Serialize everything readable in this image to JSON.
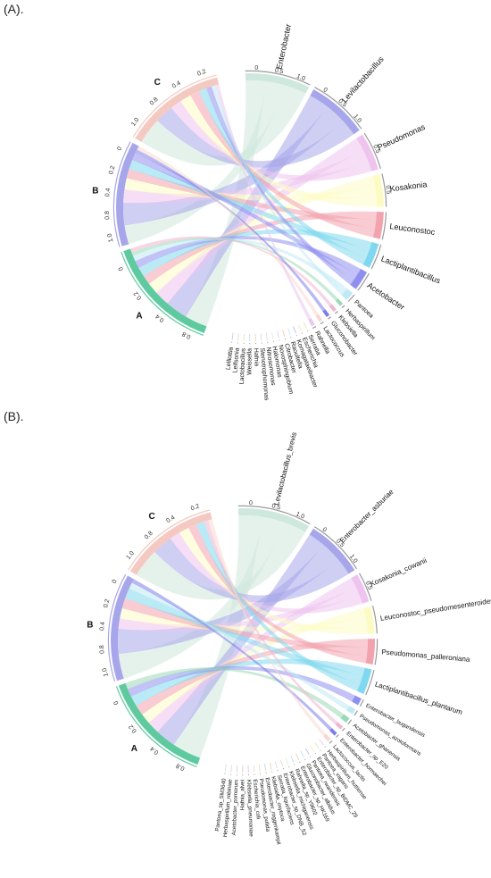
{
  "panels": [
    {
      "label": "(A).",
      "groups": [
        {
          "name": "A",
          "color": "#5fcaa0",
          "ticks": [
            "0.8",
            "0.4",
            "0.2",
            "0"
          ]
        },
        {
          "name": "B",
          "color": "#a8a6ea",
          "ticks": [
            "1.0",
            "0.8",
            "0.4",
            "0.2",
            "0"
          ]
        },
        {
          "name": "C",
          "color": "#f4c9c2",
          "ticks": [
            "1.0",
            "0.8",
            "0.4",
            "0.2"
          ]
        }
      ],
      "taxa": [
        {
          "name": "Enterobacter",
          "color": "#cfe8dd",
          "ticks": [
            "0",
            "0.5",
            "1.0"
          ]
        },
        {
          "name": "Levilactobacillus",
          "color": "#a8a6ea",
          "ticks": [
            "0",
            "0.5",
            "1.0"
          ]
        },
        {
          "name": "Pseudomonas",
          "color": "#eec4ee",
          "ticks": [
            "0.5"
          ]
        },
        {
          "name": "Kosakonia",
          "color": "#fdfbc4",
          "ticks": [
            "0.5"
          ]
        },
        {
          "name": "Leuconostoc",
          "color": "#f3a3ad",
          "ticks": []
        },
        {
          "name": "Lactiplantibacillus",
          "color": "#7fd8ef",
          "ticks": []
        },
        {
          "name": "Acetobacter",
          "color": "#8f8ff0",
          "ticks": []
        },
        {
          "name": "Pantoea",
          "color": "#bfe9f4",
          "ticks": []
        },
        {
          "name": "Herbaspirillum",
          "color": "#9ad9b7",
          "ticks": []
        },
        {
          "name": "Klebsiella",
          "color": "#f0b6cf",
          "ticks": []
        },
        {
          "name": "Gluconobacter",
          "color": "#7d7dea",
          "ticks": []
        },
        {
          "name": "Lactococcus",
          "color": "#f7d8d0",
          "ticks": []
        },
        {
          "name": "Rahnella",
          "color": "#e7c8ef",
          "ticks": []
        },
        {
          "name": "Serratia",
          "color": "#d4e8b8",
          "ticks": []
        },
        {
          "name": "Escherichia",
          "color": "#f9e4b8",
          "ticks": []
        },
        {
          "name": "Komagataeibacter",
          "color": "#c1b3ee",
          "ticks": []
        },
        {
          "name": "Raoultella",
          "color": "#bfe3e8",
          "ticks": []
        },
        {
          "name": "Citrobacter",
          "color": "#f2c2a6",
          "ticks": []
        },
        {
          "name": "Novosphingobium",
          "color": "#cfd4f4",
          "ticks": []
        },
        {
          "name": "Halomonas",
          "color": "#d8efc9",
          "ticks": []
        },
        {
          "name": "Nitrosomonas",
          "color": "#f1d0e6",
          "ticks": []
        },
        {
          "name": "Stenotrophomonas",
          "color": "#d6d6d6",
          "ticks": []
        },
        {
          "name": "Hafnia",
          "color": "#e4cfa8",
          "ticks": []
        },
        {
          "name": "Weissella",
          "color": "#b8dce9",
          "ticks": []
        },
        {
          "name": "Lactobacillus",
          "color": "#e6e0a7",
          "ticks": []
        },
        {
          "name": "Leifsonia",
          "color": "#f1d6c4",
          "ticks": []
        },
        {
          "name": "Lelliottia",
          "color": "#c7c7e6",
          "ticks": []
        }
      ],
      "flows": [
        [
          "A",
          "Enterobacter",
          0.12
        ],
        [
          "A",
          "Levilactobacillus",
          0.12
        ],
        [
          "A",
          "Pseudomonas",
          0.08
        ],
        [
          "A",
          "Kosakonia",
          0.06
        ],
        [
          "A",
          "Leuconostoc",
          0.05
        ],
        [
          "A",
          "Lactiplantibacillus",
          0.05
        ],
        [
          "A",
          "Acetobacter",
          0.04
        ],
        [
          "A",
          "Pantoea",
          0.03
        ],
        [
          "A",
          "Herbaspirillum",
          0.02
        ],
        [
          "A",
          "Klebsiella",
          0.02
        ],
        [
          "B",
          "Enterobacter",
          0.1
        ],
        [
          "B",
          "Levilactobacillus",
          0.12
        ],
        [
          "B",
          "Pseudomonas",
          0.07
        ],
        [
          "B",
          "Kosakonia",
          0.06
        ],
        [
          "B",
          "Leuconostoc",
          0.05
        ],
        [
          "B",
          "Lactiplantibacillus",
          0.05
        ],
        [
          "B",
          "Acetobacter",
          0.04
        ],
        [
          "B",
          "Gluconobacter",
          0.02
        ],
        [
          "B",
          "Lactococcus",
          0.02
        ],
        [
          "C",
          "Enterobacter",
          0.14
        ],
        [
          "C",
          "Levilactobacillus",
          0.1
        ],
        [
          "C",
          "Pseudomonas",
          0.06
        ],
        [
          "C",
          "Kosakonia",
          0.06
        ],
        [
          "C",
          "Leuconostoc",
          0.05
        ],
        [
          "C",
          "Lactiplantibacillus",
          0.04
        ],
        [
          "C",
          "Acetobacter",
          0.03
        ],
        [
          "C",
          "Pantoea",
          0.02
        ],
        [
          "C",
          "Rahnella",
          0.02
        ]
      ]
    },
    {
      "label": "(B).",
      "groups": [
        {
          "name": "A",
          "color": "#5fcaa0",
          "ticks": [
            "0.8",
            "0.4",
            "0.2",
            "0"
          ]
        },
        {
          "name": "B",
          "color": "#a8a6ea",
          "ticks": [
            "1.0",
            "0.8",
            "0.4",
            "0.2",
            "0"
          ]
        },
        {
          "name": "C",
          "color": "#f4c9c2",
          "ticks": [
            "1.0",
            "0.8",
            "0.4",
            "0.2"
          ]
        }
      ],
      "taxa": [
        {
          "name": "Levilactobacillus_brevis",
          "color": "#cfe8dd",
          "ticks": [
            "0",
            "0.5",
            "1.0"
          ]
        },
        {
          "name": "Enterobacter_asburiae",
          "color": "#a8a6ea",
          "ticks": [
            "0",
            "0.5",
            "1.0"
          ]
        },
        {
          "name": "Kosakonia_cowanii",
          "color": "#eec4ee",
          "ticks": [
            "0.5"
          ]
        },
        {
          "name": "Leuconostoc_pseudomesenteroides",
          "color": "#fdfbc4",
          "ticks": []
        },
        {
          "name": "Pseudomonas_palleroniana",
          "color": "#f3a3ad",
          "ticks": []
        },
        {
          "name": "Lactiplantibacillus_plantarum",
          "color": "#7fd8ef",
          "ticks": []
        },
        {
          "name": "Enterobacter_bugandensis",
          "color": "#8f8ff0",
          "ticks": []
        },
        {
          "name": "Pseudomonas_azotoformans",
          "color": "#bfe9f4",
          "ticks": []
        },
        {
          "name": "Acetobacter_ghanensis",
          "color": "#9ad9b7",
          "ticks": []
        },
        {
          "name": "Enterobacter_sp_E20",
          "color": "#f0b6cf",
          "ticks": []
        },
        {
          "name": "Enterobacter_hormaechei",
          "color": "#7d7dea",
          "ticks": []
        },
        {
          "name": "Lactococcus_lactis",
          "color": "#f7d8d0",
          "ticks": []
        },
        {
          "name": "Herbaspirillum_huttiense",
          "color": "#e7c8ef",
          "ticks": []
        },
        {
          "name": "Pantoea_vagans",
          "color": "#d4e8b8",
          "ticks": []
        },
        {
          "name": "Enterobacter_sp_BIDMC_29",
          "color": "#f9e4b8",
          "ticks": []
        },
        {
          "name": "Pantoea_rwandensis",
          "color": "#c1b3ee",
          "ticks": []
        },
        {
          "name": "Gluconobacter_albidus",
          "color": "#bfe3e8",
          "ticks": []
        },
        {
          "name": "Enterobacter_sp_HK169",
          "color": "#f2c2a6",
          "ticks": []
        },
        {
          "name": "Rahnella_sp_Y9602",
          "color": "#cfd4f4",
          "ticks": []
        },
        {
          "name": "Klebsiella_michiganensis",
          "color": "#d8efc9",
          "ticks": []
        },
        {
          "name": "Enterobacter_sp_DNB_S2",
          "color": "#f1d0e6",
          "ticks": []
        },
        {
          "name": "Serratia_liquefaciens",
          "color": "#d6d6d6",
          "ticks": []
        },
        {
          "name": "Klebsiella_oxytoca",
          "color": "#e4cfa8",
          "ticks": []
        },
        {
          "name": "Enterobacter_roggenkampii",
          "color": "#b8dce9",
          "ticks": []
        },
        {
          "name": "Pseudomonas_putida",
          "color": "#e6e0a7",
          "ticks": []
        },
        {
          "name": "Escherichia_coli",
          "color": "#f1d6c4",
          "ticks": []
        },
        {
          "name": "Klebsiella_pneumoniae",
          "color": "#c7c7e6",
          "ticks": []
        },
        {
          "name": "Hafnia_alvei",
          "color": "#d9c4b8",
          "ticks": []
        },
        {
          "name": "Acetobacter_pomorum",
          "color": "#bde0c9",
          "ticks": []
        },
        {
          "name": "Herbaspirillum_robiniae",
          "color": "#e8d0d8",
          "ticks": []
        },
        {
          "name": "Pantoea_sp_SM3640",
          "color": "#d0d8e8",
          "ticks": []
        }
      ],
      "flows": [
        [
          "A",
          "Levilactobacillus_brevis",
          0.14
        ],
        [
          "A",
          "Enterobacter_asburiae",
          0.1
        ],
        [
          "A",
          "Kosakonia_cowanii",
          0.06
        ],
        [
          "A",
          "Leuconostoc_pseudomesenteroides",
          0.05
        ],
        [
          "A",
          "Pseudomonas_palleroniana",
          0.05
        ],
        [
          "A",
          "Lactiplantibacillus_plantarum",
          0.05
        ],
        [
          "A",
          "Enterobacter_bugandensis",
          0.04
        ],
        [
          "A",
          "Acetobacter_ghanensis",
          0.03
        ],
        [
          "B",
          "Levilactobacillus_brevis",
          0.12
        ],
        [
          "B",
          "Enterobacter_asburiae",
          0.12
        ],
        [
          "B",
          "Kosakonia_cowanii",
          0.05
        ],
        [
          "B",
          "Leuconostoc_pseudomesenteroides",
          0.05
        ],
        [
          "B",
          "Pseudomonas_palleroniana",
          0.05
        ],
        [
          "B",
          "Lactiplantibacillus_plantarum",
          0.05
        ],
        [
          "B",
          "Pseudomonas_azotoformans",
          0.03
        ],
        [
          "B",
          "Enterobacter_hormaechei",
          0.02
        ],
        [
          "C",
          "Levilactobacillus_brevis",
          0.14
        ],
        [
          "C",
          "Enterobacter_asburiae",
          0.1
        ],
        [
          "C",
          "Kosakonia_cowanii",
          0.05
        ],
        [
          "C",
          "Leuconostoc_pseudomesenteroides",
          0.05
        ],
        [
          "C",
          "Pseudomonas_palleroniana",
          0.04
        ],
        [
          "C",
          "Lactiplantibacillus_plantarum",
          0.04
        ],
        [
          "C",
          "Enterobacter_sp_E20",
          0.02
        ],
        [
          "C",
          "Lactococcus_lactis",
          0.02
        ]
      ]
    }
  ]
}
